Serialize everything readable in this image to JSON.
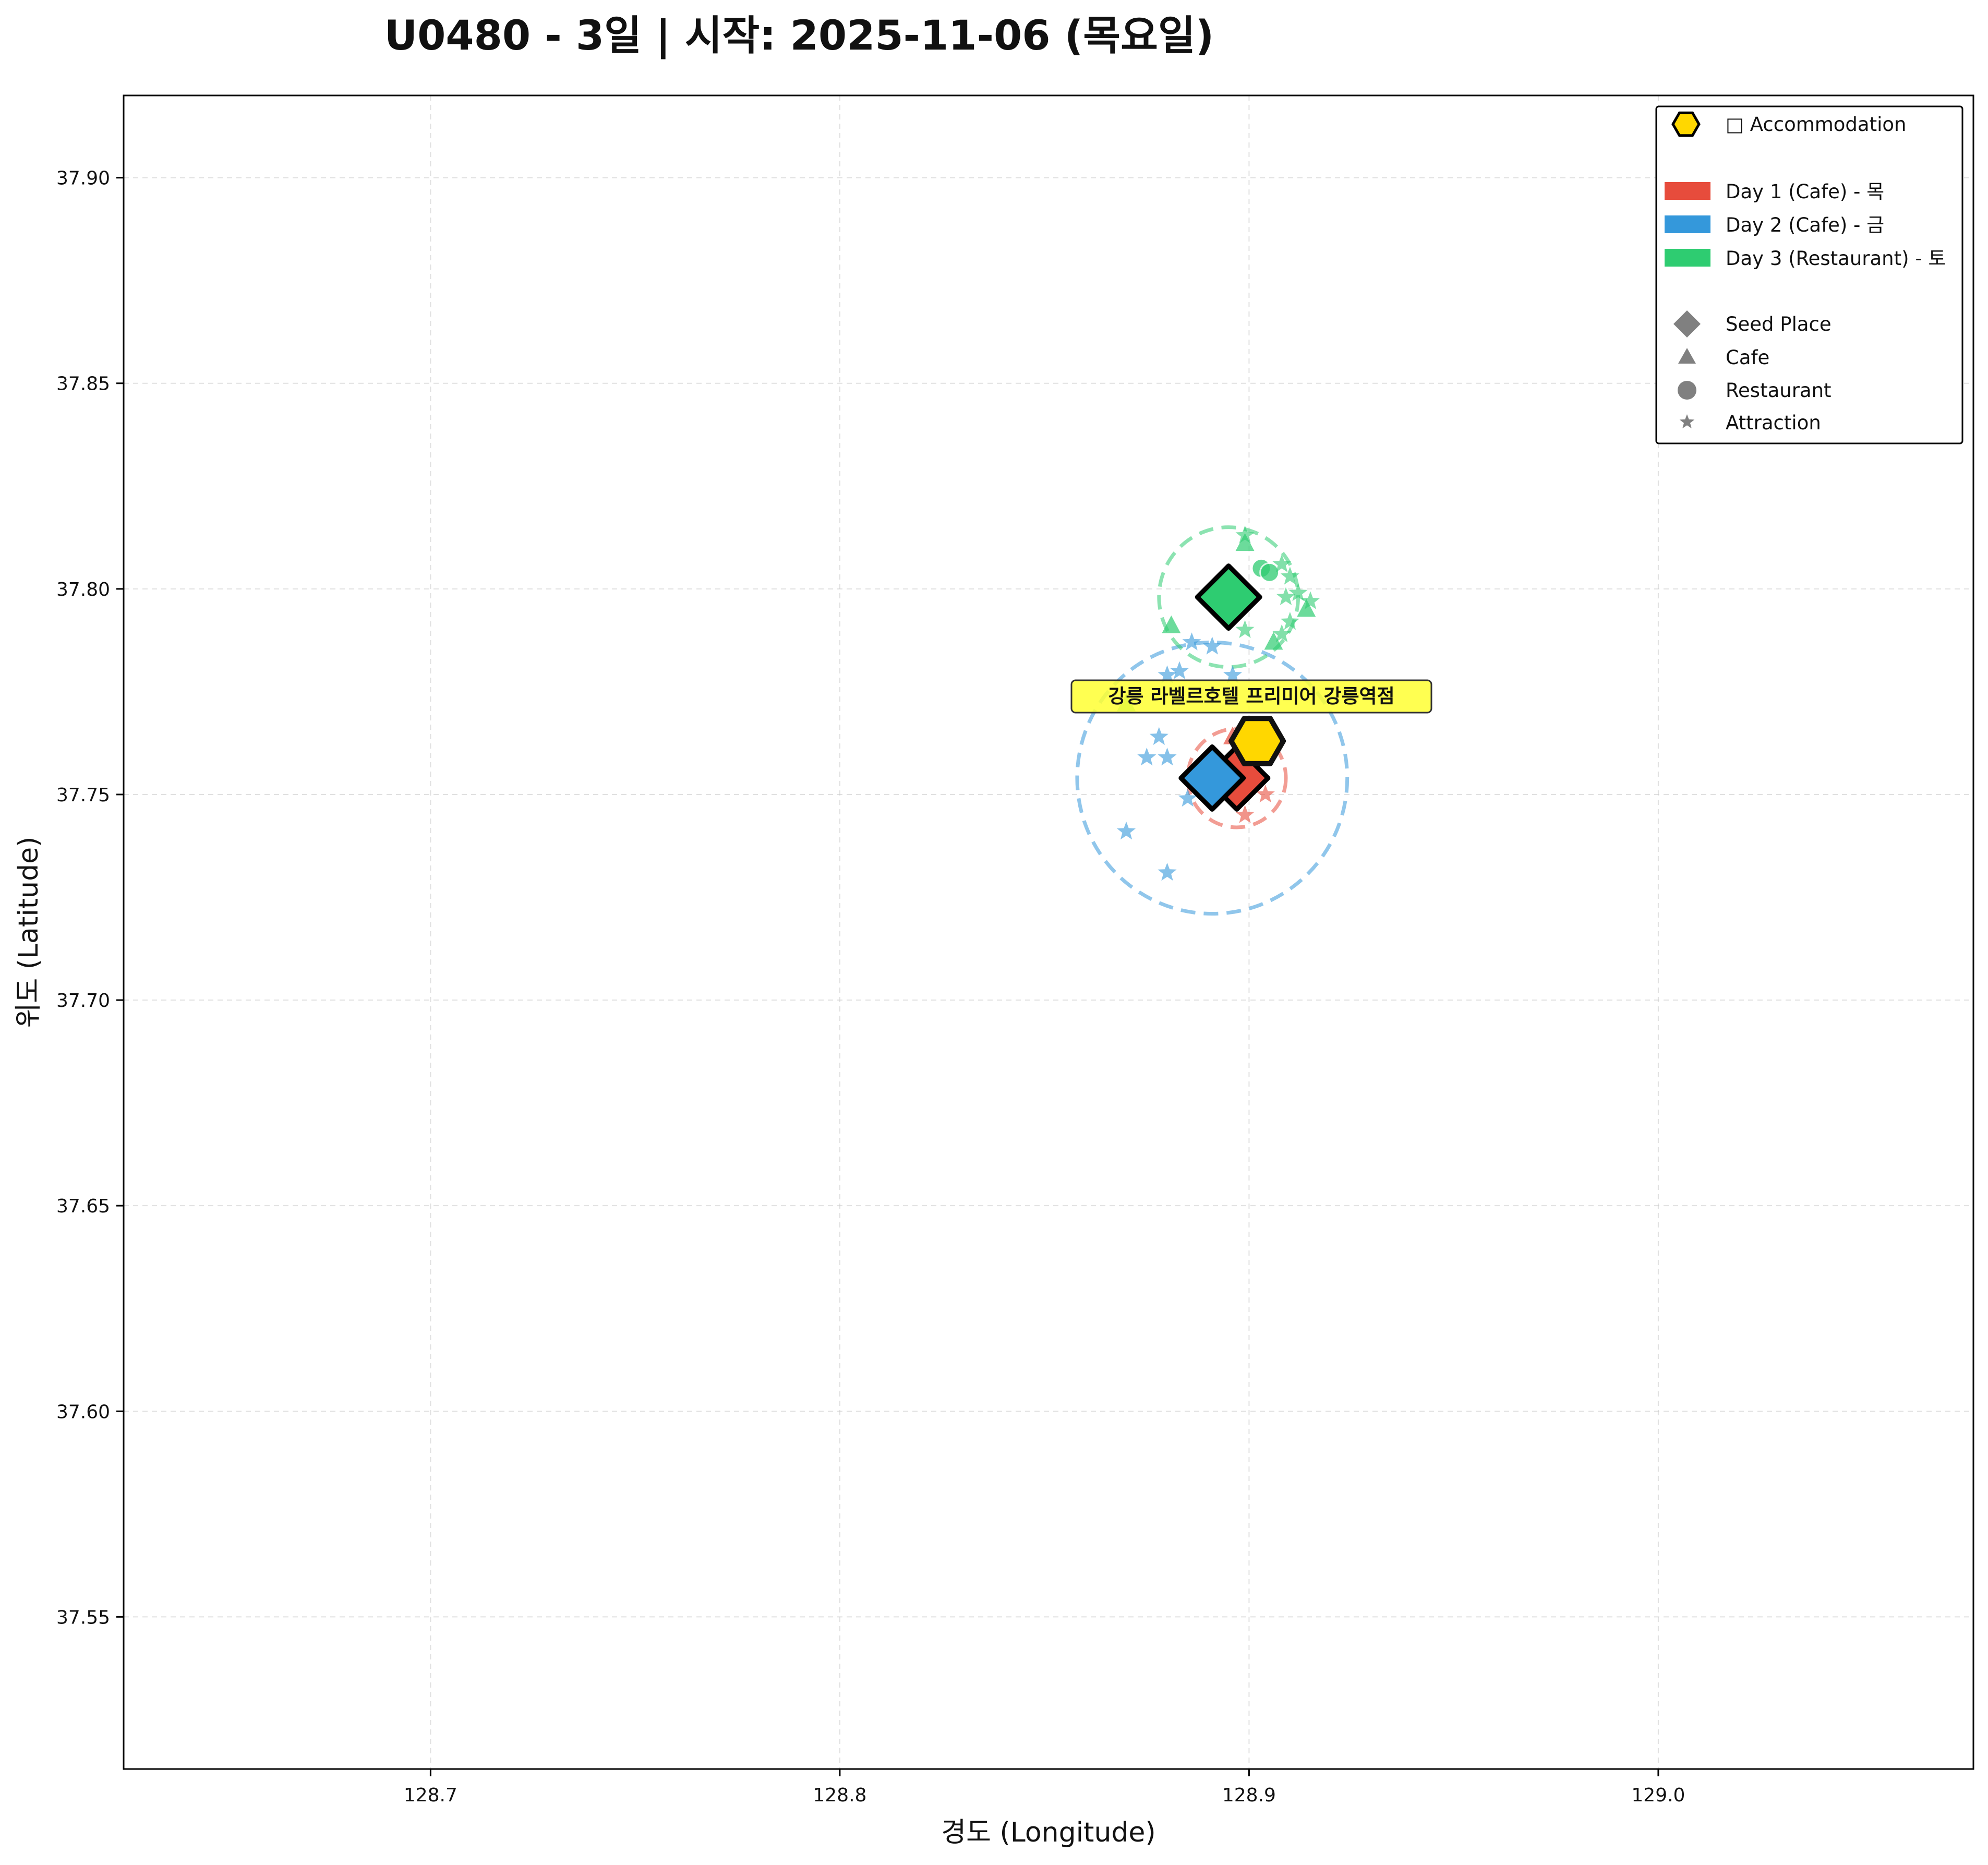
{
  "chart_data": {
    "type": "scatter",
    "title": "U0480 - 3일 | 시작: 2025-11-06 (목요일)",
    "xlabel": "경도 (Longitude)",
    "ylabel": "위도 (Latitude)",
    "xlim": [
      128.625,
      129.077
    ],
    "ylim": [
      37.513,
      37.92
    ],
    "xticks": [
      128.7,
      128.8,
      128.9,
      129.0
    ],
    "xtick_labels": [
      "128.7",
      "128.8",
      "128.9",
      "129.0"
    ],
    "yticks": [
      37.55,
      37.6,
      37.65,
      37.7,
      37.75,
      37.8,
      37.85,
      37.9
    ],
    "ytick_labels": [
      "37.55",
      "37.60",
      "37.65",
      "37.70",
      "37.75",
      "37.80",
      "37.85",
      "37.90"
    ],
    "grid": true,
    "legend_position": "top-right",
    "colors": {
      "day1": "#e74c3c",
      "day2": "#3498db",
      "day3": "#2ecc71",
      "accommodation": "#FFD700",
      "legend_marker": "#808080"
    },
    "legend": {
      "accommodation": "□ Accommodation",
      "days": [
        "Day 1 (Cafe) - 목",
        "Day 2 (Cafe) - 금",
        "Day 3 (Restaurant) - 토"
      ],
      "markers": [
        "Seed Place",
        "Cafe",
        "Restaurant",
        "Attraction"
      ]
    },
    "accommodation": {
      "name": "강릉 라벨르호텔 프리미어 강릉역점",
      "lon": 128.902,
      "lat": 37.763
    },
    "series": [
      {
        "name": "Day 1 (Cafe) - 목",
        "color": "#e74c3c",
        "seed": {
          "lon": 128.897,
          "lat": 37.754
        },
        "radius_deg": 0.012,
        "points": [
          {
            "lon": 128.899,
            "lat": 37.745,
            "kind": "attraction"
          },
          {
            "lon": 128.904,
            "lat": 37.75,
            "kind": "attraction"
          },
          {
            "lon": 128.892,
            "lat": 37.758,
            "kind": "attraction"
          },
          {
            "lon": 128.896,
            "lat": 37.764,
            "kind": "cafe"
          }
        ]
      },
      {
        "name": "Day 2 (Cafe) - 금",
        "color": "#3498db",
        "seed": {
          "lon": 128.891,
          "lat": 37.754
        },
        "radius_deg": 0.033,
        "points": [
          {
            "lon": 128.87,
            "lat": 37.741,
            "kind": "attraction"
          },
          {
            "lon": 128.88,
            "lat": 37.731,
            "kind": "attraction"
          },
          {
            "lon": 128.875,
            "lat": 37.759,
            "kind": "attraction"
          },
          {
            "lon": 128.88,
            "lat": 37.759,
            "kind": "attraction"
          },
          {
            "lon": 128.878,
            "lat": 37.764,
            "kind": "attraction"
          },
          {
            "lon": 128.885,
            "lat": 37.749,
            "kind": "attraction"
          },
          {
            "lon": 128.88,
            "lat": 37.779,
            "kind": "attraction"
          },
          {
            "lon": 128.883,
            "lat": 37.78,
            "kind": "attraction"
          },
          {
            "lon": 128.886,
            "lat": 37.787,
            "kind": "attraction"
          },
          {
            "lon": 128.891,
            "lat": 37.786,
            "kind": "attraction"
          },
          {
            "lon": 128.896,
            "lat": 37.779,
            "kind": "attraction"
          }
        ]
      },
      {
        "name": "Day 3 (Restaurant) - 토",
        "color": "#2ecc71",
        "seed": {
          "lon": 128.895,
          "lat": 37.798
        },
        "radius_deg": 0.017,
        "points": [
          {
            "lon": 128.899,
            "lat": 37.813,
            "kind": "attraction"
          },
          {
            "lon": 128.899,
            "lat": 37.811,
            "kind": "cafe"
          },
          {
            "lon": 128.903,
            "lat": 37.805,
            "kind": "restaurant"
          },
          {
            "lon": 128.905,
            "lat": 37.804,
            "kind": "restaurant"
          },
          {
            "lon": 128.908,
            "lat": 37.806,
            "kind": "attraction"
          },
          {
            "lon": 128.91,
            "lat": 37.803,
            "kind": "attraction"
          },
          {
            "lon": 128.909,
            "lat": 37.798,
            "kind": "attraction"
          },
          {
            "lon": 128.912,
            "lat": 37.799,
            "kind": "attraction"
          },
          {
            "lon": 128.915,
            "lat": 37.797,
            "kind": "attraction"
          },
          {
            "lon": 128.914,
            "lat": 37.795,
            "kind": "cafe"
          },
          {
            "lon": 128.91,
            "lat": 37.792,
            "kind": "attraction"
          },
          {
            "lon": 128.908,
            "lat": 37.789,
            "kind": "attraction"
          },
          {
            "lon": 128.906,
            "lat": 37.787,
            "kind": "cafe"
          },
          {
            "lon": 128.899,
            "lat": 37.79,
            "kind": "attraction"
          },
          {
            "lon": 128.881,
            "lat": 37.791,
            "kind": "cafe"
          },
          {
            "lon": 128.87,
            "lat": 37.772,
            "kind": "cafe"
          }
        ]
      }
    ]
  }
}
